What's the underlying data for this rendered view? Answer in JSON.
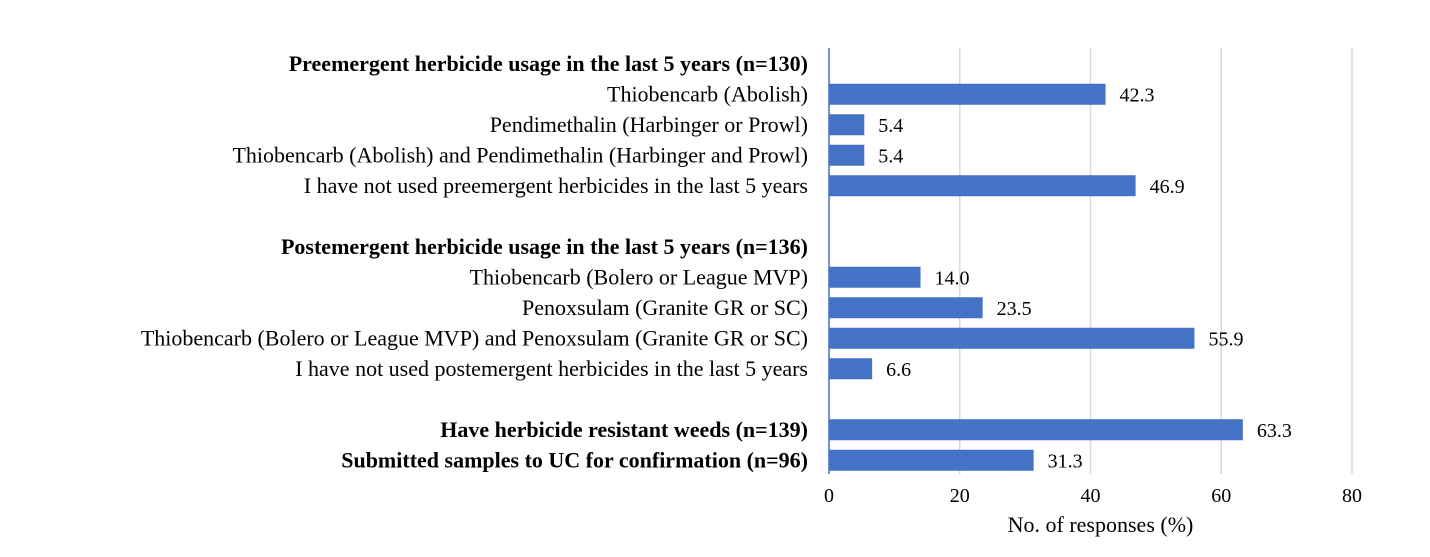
{
  "chart_data": {
    "type": "bar",
    "orientation": "horizontal",
    "xlabel": "No. of responses (%)",
    "xlim": [
      0,
      80
    ],
    "xticks": [
      0,
      20,
      40,
      60,
      80
    ],
    "grid": true,
    "bar_color": "#4472C4",
    "rows": [
      {
        "label": "Preemergent herbicide usage in the last 5 years (n=130)",
        "bold": true,
        "value": null
      },
      {
        "label": "Thiobencarb (Abolish)",
        "bold": false,
        "value": 42.3,
        "value_label": "42.3"
      },
      {
        "label": "Pendimethalin (Harbinger or Prowl)",
        "bold": false,
        "value": 5.4,
        "value_label": "5.4"
      },
      {
        "label": "Thiobencarb (Abolish) and Pendimethalin (Harbinger and Prowl)",
        "bold": false,
        "value": 5.4,
        "value_label": "5.4"
      },
      {
        "label": "I have not used  preemergent  herbicides in the last 5 years",
        "bold": false,
        "value": 46.9,
        "value_label": "46.9"
      },
      {
        "label": "",
        "bold": false,
        "value": null
      },
      {
        "label": "Postemergent herbicide usage in the last 5 years (n=136)",
        "bold": true,
        "value": null
      },
      {
        "label": "Thiobencarb (Bolero or League MVP)",
        "bold": false,
        "value": 14.0,
        "value_label": "14.0"
      },
      {
        "label": "Penoxsulam (Granite GR or SC)",
        "bold": false,
        "value": 23.5,
        "value_label": "23.5"
      },
      {
        "label": "Thiobencarb (Bolero or League MVP) and Penoxsulam (Granite GR or SC)",
        "bold": false,
        "value": 55.9,
        "value_label": "55.9"
      },
      {
        "label": "I have not used  postemergent  herbicides in the last 5 years",
        "bold": false,
        "value": 6.6,
        "value_label": "6.6"
      },
      {
        "label": "",
        "bold": false,
        "value": null
      },
      {
        "label": "Have herbicide resistant weeds (n=139)",
        "bold": true,
        "value": 63.3,
        "value_label": "63.3"
      },
      {
        "label": "Submitted samples to UC for confirmation (n=96)",
        "bold": true,
        "value": 31.3,
        "value_label": "31.3"
      }
    ]
  }
}
